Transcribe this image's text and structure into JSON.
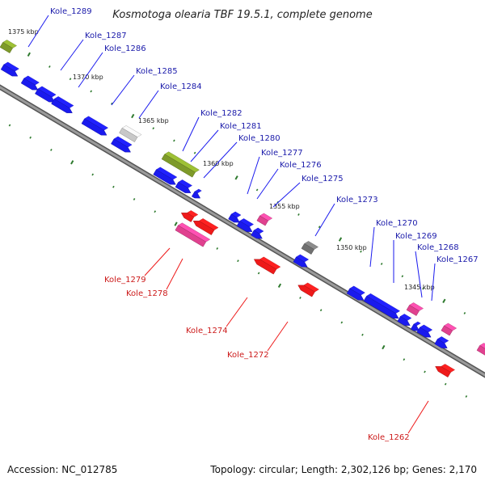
{
  "title": "Kosmotoga olearia TBF 19.5.1, complete genome",
  "accession": "Accession: NC_012785",
  "topology": "Topology: circular; Length: 2,302,126 bp; Genes: 2,170",
  "colors": {
    "forward_gene": "#1a1aee",
    "reverse_gene": "#ee1a1a",
    "rna": "#e0418f",
    "olive": "#7e9a2a",
    "light_gray": "#c8c8c8",
    "dark_gray": "#707070",
    "backbone": "#8a8a8a",
    "tick": "#2e7a2e",
    "forward_label": "#1a1aaa",
    "reverse_label": "#cc1a1a"
  },
  "scale_labels": [
    "1375 kbp",
    "1370 kbp",
    "1365 kbp",
    "1360 kbp",
    "1355 kbp",
    "1350 kbp",
    "1345 kbp"
  ],
  "forward_labels": [
    "Kole_1289",
    "Kole_1287",
    "Kole_1286",
    "Kole_1285",
    "Kole_1284",
    "Kole_1282",
    "Kole_1281",
    "Kole_1280",
    "Kole_1277",
    "Kole_1276",
    "Kole_1275",
    "Kole_1273",
    "Kole_1270",
    "Kole_1269",
    "Kole_1268",
    "Kole_1267"
  ],
  "reverse_labels": [
    "Kole_1279",
    "Kole_1278",
    "Kole_1274",
    "Kole_1272",
    "Kole_1262"
  ]
}
